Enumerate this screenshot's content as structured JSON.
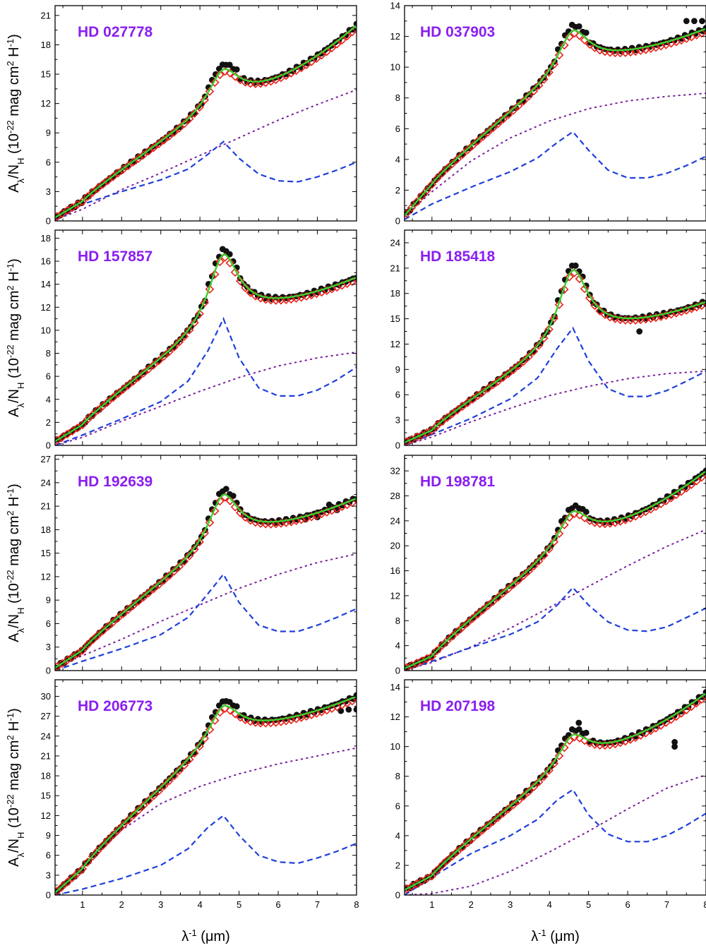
{
  "colors": {
    "observed": "#111111",
    "model_total": "#e8231b",
    "fit_total": "#3ad12e",
    "component_dashed": "#1f3fdb",
    "component_dotted": "#7a1f9e",
    "label": "#8a1ef0"
  },
  "xaxis": {
    "xlim": [
      0.3,
      8.0
    ],
    "ticks": [
      1,
      2,
      3,
      4,
      5,
      6,
      7,
      8
    ],
    "tick_labels": [
      "1",
      "2",
      "3",
      "4",
      "5",
      "6",
      "7",
      "8"
    ],
    "title_text": "λ",
    "title_sup": "-1",
    "title_unit": " (μm)"
  },
  "yaxis": {
    "title_main": "A",
    "title_sub1": "λ",
    "title_mid": "/N",
    "title_sub2": "H",
    "title_open": " (10",
    "title_sup1": "-22",
    "title_mag": " mag cm",
    "title_sup2": "2",
    "title_h": " H",
    "title_sup3": "-1",
    "title_close": ")"
  },
  "chart_data": [
    {
      "type": "line",
      "title": "HD 027778",
      "ylim": [
        0,
        22
      ],
      "yticks": [
        0,
        3,
        6,
        9,
        12,
        15,
        18,
        21
      ],
      "bump": {
        "x0": 4.6,
        "height": 3.4,
        "width": 1.0
      },
      "peak": 15.5,
      "v1": 2.0,
      "v8": 20.0,
      "dash": [
        [
          0.3,
          0.0
        ],
        [
          1.0,
          1.7
        ],
        [
          2.0,
          3.0
        ],
        [
          3.0,
          4.2
        ],
        [
          3.7,
          5.3
        ],
        [
          4.2,
          6.8
        ],
        [
          4.6,
          8.1
        ],
        [
          5.0,
          6.4
        ],
        [
          5.5,
          4.8
        ],
        [
          6.0,
          4.1
        ],
        [
          6.5,
          4.0
        ],
        [
          7.0,
          4.5
        ],
        [
          7.5,
          5.2
        ],
        [
          8.0,
          6.0
        ]
      ],
      "dot": [
        [
          0.3,
          0.1
        ],
        [
          1.0,
          1.2
        ],
        [
          2.0,
          3.2
        ],
        [
          3.0,
          4.9
        ],
        [
          4.0,
          6.7
        ],
        [
          5.0,
          8.5
        ],
        [
          6.0,
          10.3
        ],
        [
          7.0,
          11.9
        ],
        [
          8.0,
          13.4
        ]
      ],
      "scatter_extra": []
    },
    {
      "type": "line",
      "title": "HD 037903",
      "ylim": [
        0,
        14
      ],
      "yticks": [
        0,
        2,
        4,
        6,
        8,
        10,
        12,
        14
      ],
      "bump": {
        "x0": 4.6,
        "height": 2.2,
        "width": 1.0
      },
      "peak": 12.4,
      "v1": 2.4,
      "v8": 12.5,
      "dash": [
        [
          0.3,
          0.1
        ],
        [
          1.0,
          1.1
        ],
        [
          2.0,
          2.2
        ],
        [
          3.0,
          3.2
        ],
        [
          3.7,
          4.1
        ],
        [
          4.2,
          5.1
        ],
        [
          4.6,
          5.8
        ],
        [
          5.0,
          4.6
        ],
        [
          5.5,
          3.3
        ],
        [
          6.0,
          2.8
        ],
        [
          6.5,
          2.8
        ],
        [
          7.0,
          3.1
        ],
        [
          7.5,
          3.6
        ],
        [
          8.0,
          4.2
        ]
      ],
      "dot": [
        [
          0.3,
          0.3
        ],
        [
          1.0,
          1.9
        ],
        [
          2.0,
          3.9
        ],
        [
          3.0,
          5.4
        ],
        [
          4.0,
          6.5
        ],
        [
          5.0,
          7.3
        ],
        [
          6.0,
          7.8
        ],
        [
          7.0,
          8.1
        ],
        [
          8.0,
          8.3
        ]
      ],
      "scatter_extra": [
        [
          7.5,
          13.0
        ],
        [
          7.7,
          13.0
        ],
        [
          7.9,
          13.0
        ]
      ]
    },
    {
      "type": "line",
      "title": "HD 157857",
      "ylim": [
        0,
        18.7
      ],
      "yticks": [
        0,
        2,
        4,
        6,
        8,
        10,
        12,
        14,
        16,
        18
      ],
      "bump": {
        "x0": 4.6,
        "height": 5.4,
        "width": 0.95
      },
      "peak": 16.6,
      "v1": 1.8,
      "v8": 14.6,
      "dash": [
        [
          0.3,
          0.0
        ],
        [
          1.0,
          0.9
        ],
        [
          2.0,
          2.3
        ],
        [
          3.0,
          3.8
        ],
        [
          3.7,
          5.6
        ],
        [
          4.2,
          8.2
        ],
        [
          4.6,
          11.0
        ],
        [
          5.0,
          7.6
        ],
        [
          5.5,
          5.0
        ],
        [
          6.0,
          4.3
        ],
        [
          6.5,
          4.3
        ],
        [
          7.0,
          4.8
        ],
        [
          7.5,
          5.7
        ],
        [
          8.0,
          6.8
        ]
      ],
      "dot": [
        [
          0.3,
          0.0
        ],
        [
          1.0,
          0.7
        ],
        [
          2.0,
          2.1
        ],
        [
          3.0,
          3.4
        ],
        [
          4.0,
          4.7
        ],
        [
          5.0,
          5.9
        ],
        [
          6.0,
          6.9
        ],
        [
          7.0,
          7.6
        ],
        [
          8.0,
          8.1
        ]
      ],
      "scatter_extra": []
    },
    {
      "type": "line",
      "title": "HD 185418",
      "ylim": [
        0,
        25.5
      ],
      "yticks": [
        0,
        3,
        6,
        9,
        12,
        15,
        18,
        21,
        24
      ],
      "bump": {
        "x0": 4.6,
        "height": 7.8,
        "width": 0.95
      },
      "peak": 20.8,
      "v1": 1.8,
      "v8": 17.0,
      "dash": [
        [
          0.3,
          0.0
        ],
        [
          1.0,
          1.3
        ],
        [
          2.0,
          3.2
        ],
        [
          3.0,
          5.5
        ],
        [
          3.7,
          8.0
        ],
        [
          4.2,
          11.5
        ],
        [
          4.6,
          13.9
        ],
        [
          5.0,
          10.0
        ],
        [
          5.5,
          6.7
        ],
        [
          6.0,
          5.8
        ],
        [
          6.5,
          5.8
        ],
        [
          7.0,
          6.5
        ],
        [
          7.5,
          7.6
        ],
        [
          8.0,
          8.8
        ]
      ],
      "dot": [
        [
          0.3,
          0.0
        ],
        [
          1.0,
          1.0
        ],
        [
          2.0,
          2.8
        ],
        [
          3.0,
          4.4
        ],
        [
          4.0,
          5.9
        ],
        [
          5.0,
          7.0
        ],
        [
          6.0,
          7.9
        ],
        [
          7.0,
          8.5
        ],
        [
          8.0,
          8.8
        ]
      ],
      "scatter_extra": [
        [
          6.3,
          13.5
        ]
      ]
    },
    {
      "type": "line",
      "title": "HD 192639",
      "ylim": [
        0,
        27.5
      ],
      "yticks": [
        0,
        3,
        6,
        9,
        12,
        15,
        18,
        21,
        24,
        27
      ],
      "bump": {
        "x0": 4.6,
        "height": 5.5,
        "width": 0.95
      },
      "peak": 22.5,
      "v1": 2.6,
      "v8": 22.0,
      "dash": [
        [
          0.3,
          0.0
        ],
        [
          1.0,
          1.2
        ],
        [
          2.0,
          2.8
        ],
        [
          3.0,
          4.6
        ],
        [
          3.7,
          6.8
        ],
        [
          4.2,
          9.8
        ],
        [
          4.6,
          12.3
        ],
        [
          5.0,
          8.7
        ],
        [
          5.5,
          5.8
        ],
        [
          6.0,
          5.0
        ],
        [
          6.5,
          5.0
        ],
        [
          7.0,
          5.8
        ],
        [
          7.5,
          6.8
        ],
        [
          8.0,
          7.9
        ]
      ],
      "dot": [
        [
          0.3,
          0.5
        ],
        [
          1.0,
          1.9
        ],
        [
          2.0,
          4.0
        ],
        [
          3.0,
          6.3
        ],
        [
          4.0,
          8.4
        ],
        [
          5.0,
          10.5
        ],
        [
          6.0,
          12.3
        ],
        [
          7.0,
          13.8
        ],
        [
          8.0,
          14.9
        ]
      ],
      "scatter_extra": [
        [
          6.7,
          19.3
        ],
        [
          7.0,
          19.6
        ],
        [
          7.3,
          21.2
        ],
        [
          7.5,
          20.5
        ]
      ]
    },
    {
      "type": "line",
      "title": "HD 198781",
      "ylim": [
        0,
        34.5
      ],
      "yticks": [
        0,
        4,
        8,
        12,
        16,
        20,
        24,
        28,
        32
      ],
      "bump": {
        "x0": 4.6,
        "height": 4.5,
        "width": 1.0
      },
      "peak": 25.5,
      "v1": 2.3,
      "v8": 32.0,
      "dash": [
        [
          0.3,
          0.0
        ],
        [
          1.0,
          1.5
        ],
        [
          2.0,
          3.7
        ],
        [
          3.0,
          5.8
        ],
        [
          3.7,
          7.8
        ],
        [
          4.2,
          10.5
        ],
        [
          4.6,
          13.3
        ],
        [
          5.0,
          10.5
        ],
        [
          5.5,
          7.8
        ],
        [
          6.0,
          6.5
        ],
        [
          6.5,
          6.3
        ],
        [
          7.0,
          7.0
        ],
        [
          7.5,
          8.5
        ],
        [
          8.0,
          10.0
        ]
      ],
      "dot": [
        [
          0.3,
          0.1
        ],
        [
          1.0,
          1.3
        ],
        [
          2.0,
          3.8
        ],
        [
          3.0,
          6.8
        ],
        [
          4.0,
          10.1
        ],
        [
          5.0,
          13.5
        ],
        [
          6.0,
          16.8
        ],
        [
          7.0,
          19.9
        ],
        [
          8.0,
          22.6
        ]
      ],
      "scatter_extra": []
    },
    {
      "type": "line",
      "title": "HD 206773",
      "ylim": [
        0,
        32.5
      ],
      "yticks": [
        0,
        3,
        6,
        9,
        12,
        15,
        18,
        21,
        24,
        27,
        30
      ],
      "bump": {
        "x0": 4.6,
        "height": 4.2,
        "width": 1.0
      },
      "peak": 28.6,
      "v1": 4.0,
      "v8": 30.0,
      "dash": [
        [
          0.3,
          0.0
        ],
        [
          1.0,
          0.9
        ],
        [
          2.0,
          2.5
        ],
        [
          3.0,
          4.5
        ],
        [
          3.7,
          7.0
        ],
        [
          4.2,
          10.2
        ],
        [
          4.6,
          12.0
        ],
        [
          5.0,
          9.0
        ],
        [
          5.5,
          6.0
        ],
        [
          6.0,
          5.0
        ],
        [
          6.5,
          4.8
        ],
        [
          7.0,
          5.6
        ],
        [
          7.5,
          6.6
        ],
        [
          8.0,
          7.8
        ]
      ],
      "dot": [
        [
          0.3,
          0.5
        ],
        [
          1.0,
          4.0
        ],
        [
          2.0,
          9.8
        ],
        [
          3.0,
          13.8
        ],
        [
          4.0,
          16.4
        ],
        [
          5.0,
          18.3
        ],
        [
          6.0,
          19.8
        ],
        [
          7.0,
          21.0
        ],
        [
          8.0,
          22.2
        ]
      ],
      "scatter_extra": [
        [
          7.6,
          27.8
        ],
        [
          7.8,
          28.0
        ],
        [
          8.0,
          28.0
        ]
      ]
    },
    {
      "type": "line",
      "title": "HD 207198",
      "ylim": [
        0,
        14.5
      ],
      "yticks": [
        0,
        2,
        4,
        6,
        8,
        10,
        12,
        14
      ],
      "bump": {
        "x0": 4.6,
        "height": 1.7,
        "width": 1.0
      },
      "peak": 10.8,
      "v1": 1.3,
      "v8": 13.6,
      "dash": [
        [
          0.3,
          0.0
        ],
        [
          1.0,
          1.2
        ],
        [
          2.0,
          2.8
        ],
        [
          3.0,
          4.0
        ],
        [
          3.7,
          5.1
        ],
        [
          4.2,
          6.4
        ],
        [
          4.6,
          7.1
        ],
        [
          5.0,
          5.4
        ],
        [
          5.5,
          4.1
        ],
        [
          6.0,
          3.6
        ],
        [
          6.5,
          3.6
        ],
        [
          7.0,
          4.0
        ],
        [
          7.5,
          4.7
        ],
        [
          8.0,
          5.5
        ]
      ],
      "dot": [
        [
          0.3,
          0.0
        ],
        [
          1.0,
          0.1
        ],
        [
          2.0,
          0.6
        ],
        [
          3.0,
          1.6
        ],
        [
          4.0,
          2.9
        ],
        [
          5.0,
          4.3
        ],
        [
          6.0,
          5.8
        ],
        [
          7.0,
          7.2
        ],
        [
          8.0,
          8.1
        ]
      ],
      "scatter_extra": [
        [
          4.75,
          11.6
        ],
        [
          7.2,
          10.3
        ],
        [
          7.2,
          10.0
        ]
      ]
    }
  ]
}
